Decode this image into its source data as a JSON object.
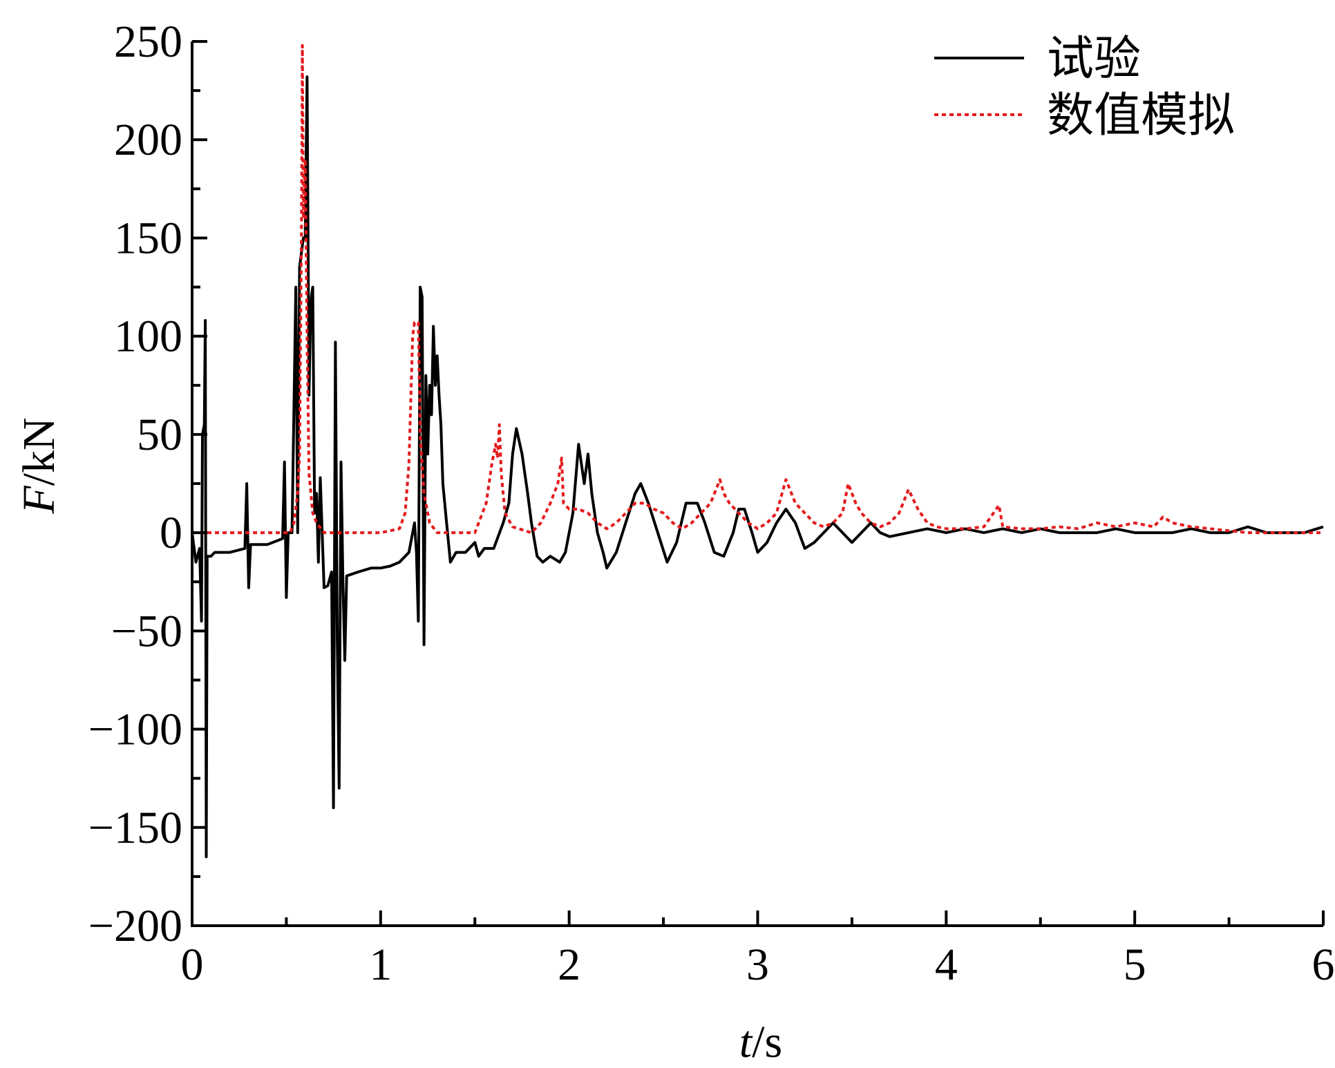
{
  "chart_data": {
    "type": "line",
    "xlabel": {
      "var": "t",
      "unit": "/s"
    },
    "ylabel": {
      "var": "F",
      "unit": "/kN"
    },
    "xlim": [
      0,
      6
    ],
    "ylim": [
      -200,
      250
    ],
    "xticks": [
      0,
      1,
      2,
      3,
      4,
      5,
      6
    ],
    "yticks": [
      -200,
      -150,
      -100,
      -50,
      0,
      50,
      100,
      150,
      200,
      250
    ],
    "xtick_labels": [
      "0",
      "1",
      "2",
      "3",
      "4",
      "5",
      "6"
    ],
    "ytick_labels": [
      "−200",
      "−150",
      "−100",
      "−50",
      "0",
      "50",
      "100",
      "150",
      "200",
      "250"
    ],
    "x_minor_step": 0.5,
    "y_minor_step": 25,
    "grid": false,
    "legend_position": "top-right",
    "series": [
      {
        "name": "试验",
        "color": "#000000",
        "dash": "solid",
        "points": [
          [
            0.0,
            0
          ],
          [
            0.02,
            -15
          ],
          [
            0.04,
            -8
          ],
          [
            0.05,
            -45
          ],
          [
            0.055,
            50
          ],
          [
            0.065,
            55
          ],
          [
            0.07,
            108
          ],
          [
            0.075,
            -165
          ],
          [
            0.08,
            -12
          ],
          [
            0.1,
            -12
          ],
          [
            0.12,
            -10
          ],
          [
            0.2,
            -10
          ],
          [
            0.28,
            -8
          ],
          [
            0.29,
            25
          ],
          [
            0.3,
            -28
          ],
          [
            0.31,
            -6
          ],
          [
            0.4,
            -6
          ],
          [
            0.48,
            -3
          ],
          [
            0.49,
            36
          ],
          [
            0.5,
            -33
          ],
          [
            0.51,
            0
          ],
          [
            0.53,
            0
          ],
          [
            0.55,
            125
          ],
          [
            0.56,
            0
          ],
          [
            0.57,
            135
          ],
          [
            0.59,
            150
          ],
          [
            0.6,
            150
          ],
          [
            0.61,
            232
          ],
          [
            0.62,
            70
          ],
          [
            0.63,
            118
          ],
          [
            0.64,
            125
          ],
          [
            0.65,
            10
          ],
          [
            0.66,
            20
          ],
          [
            0.67,
            -15
          ],
          [
            0.68,
            28
          ],
          [
            0.7,
            -28
          ],
          [
            0.72,
            -27
          ],
          [
            0.74,
            -20
          ],
          [
            0.75,
            -140
          ],
          [
            0.76,
            97
          ],
          [
            0.77,
            -55
          ],
          [
            0.78,
            -130
          ],
          [
            0.79,
            36
          ],
          [
            0.8,
            -25
          ],
          [
            0.81,
            -65
          ],
          [
            0.82,
            -22
          ],
          [
            0.88,
            -20
          ],
          [
            0.95,
            -18
          ],
          [
            1.0,
            -18
          ],
          [
            1.05,
            -17
          ],
          [
            1.1,
            -15
          ],
          [
            1.15,
            -10
          ],
          [
            1.18,
            5
          ],
          [
            1.19,
            -10
          ],
          [
            1.2,
            -45
          ],
          [
            1.21,
            125
          ],
          [
            1.22,
            120
          ],
          [
            1.23,
            -57
          ],
          [
            1.24,
            80
          ],
          [
            1.25,
            40
          ],
          [
            1.26,
            75
          ],
          [
            1.27,
            60
          ],
          [
            1.28,
            105
          ],
          [
            1.29,
            75
          ],
          [
            1.3,
            90
          ],
          [
            1.31,
            70
          ],
          [
            1.32,
            55
          ],
          [
            1.33,
            25
          ],
          [
            1.35,
            5
          ],
          [
            1.37,
            -15
          ],
          [
            1.4,
            -10
          ],
          [
            1.45,
            -10
          ],
          [
            1.5,
            -5
          ],
          [
            1.52,
            -12
          ],
          [
            1.55,
            -8
          ],
          [
            1.6,
            -8
          ],
          [
            1.65,
            5
          ],
          [
            1.68,
            15
          ],
          [
            1.7,
            40
          ],
          [
            1.72,
            53
          ],
          [
            1.75,
            40
          ],
          [
            1.78,
            20
          ],
          [
            1.8,
            5
          ],
          [
            1.83,
            -12
          ],
          [
            1.86,
            -15
          ],
          [
            1.9,
            -12
          ],
          [
            1.95,
            -15
          ],
          [
            1.98,
            -10
          ],
          [
            2.0,
            0
          ],
          [
            2.02,
            10
          ],
          [
            2.05,
            45
          ],
          [
            2.08,
            25
          ],
          [
            2.1,
            40
          ],
          [
            2.12,
            20
          ],
          [
            2.15,
            0
          ],
          [
            2.18,
            -10
          ],
          [
            2.2,
            -18
          ],
          [
            2.25,
            -10
          ],
          [
            2.3,
            5
          ],
          [
            2.35,
            20
          ],
          [
            2.38,
            25
          ],
          [
            2.42,
            15
          ],
          [
            2.47,
            0
          ],
          [
            2.52,
            -15
          ],
          [
            2.57,
            -5
          ],
          [
            2.62,
            15
          ],
          [
            2.68,
            15
          ],
          [
            2.72,
            5
          ],
          [
            2.77,
            -10
          ],
          [
            2.82,
            -12
          ],
          [
            2.87,
            0
          ],
          [
            2.9,
            12
          ],
          [
            2.93,
            12
          ],
          [
            2.97,
            0
          ],
          [
            3.0,
            -10
          ],
          [
            3.05,
            -5
          ],
          [
            3.1,
            5
          ],
          [
            3.15,
            12
          ],
          [
            3.2,
            5
          ],
          [
            3.25,
            -8
          ],
          [
            3.3,
            -5
          ],
          [
            3.35,
            0
          ],
          [
            3.4,
            5
          ],
          [
            3.45,
            0
          ],
          [
            3.5,
            -5
          ],
          [
            3.55,
            0
          ],
          [
            3.6,
            5
          ],
          [
            3.65,
            0
          ],
          [
            3.7,
            -2
          ],
          [
            3.8,
            0
          ],
          [
            3.9,
            2
          ],
          [
            4.0,
            0
          ],
          [
            4.1,
            2
          ],
          [
            4.2,
            0
          ],
          [
            4.3,
            2
          ],
          [
            4.4,
            0
          ],
          [
            4.5,
            2
          ],
          [
            4.6,
            0
          ],
          [
            4.7,
            0
          ],
          [
            4.8,
            0
          ],
          [
            4.9,
            2
          ],
          [
            5.0,
            0
          ],
          [
            5.1,
            0
          ],
          [
            5.2,
            0
          ],
          [
            5.3,
            2
          ],
          [
            5.4,
            0
          ],
          [
            5.5,
            0
          ],
          [
            5.6,
            3
          ],
          [
            5.7,
            0
          ],
          [
            5.8,
            0
          ],
          [
            5.9,
            0
          ],
          [
            6.0,
            3
          ]
        ]
      },
      {
        "name": "数值模拟",
        "color": "#e31a1c",
        "dash": "dotted",
        "points": [
          [
            0.0,
            0
          ],
          [
            0.5,
            0
          ],
          [
            0.52,
            0
          ],
          [
            0.54,
            5
          ],
          [
            0.56,
            20
          ],
          [
            0.57,
            40
          ],
          [
            0.58,
            150
          ],
          [
            0.585,
            248
          ],
          [
            0.59,
            160
          ],
          [
            0.6,
            190
          ],
          [
            0.61,
            100
          ],
          [
            0.62,
            30
          ],
          [
            0.64,
            10
          ],
          [
            0.66,
            5
          ],
          [
            0.7,
            0
          ],
          [
            1.0,
            0
          ],
          [
            1.1,
            2
          ],
          [
            1.13,
            10
          ],
          [
            1.15,
            35
          ],
          [
            1.17,
            100
          ],
          [
            1.18,
            107
          ],
          [
            1.2,
            107
          ],
          [
            1.21,
            50
          ],
          [
            1.23,
            20
          ],
          [
            1.26,
            5
          ],
          [
            1.3,
            0
          ],
          [
            1.4,
            0
          ],
          [
            1.5,
            0
          ],
          [
            1.56,
            15
          ],
          [
            1.59,
            35
          ],
          [
            1.61,
            45
          ],
          [
            1.62,
            38
          ],
          [
            1.63,
            55
          ],
          [
            1.64,
            30
          ],
          [
            1.66,
            10
          ],
          [
            1.7,
            3
          ],
          [
            1.8,
            0
          ],
          [
            1.85,
            5
          ],
          [
            1.9,
            15
          ],
          [
            1.94,
            25
          ],
          [
            1.96,
            38
          ],
          [
            1.97,
            15
          ],
          [
            2.0,
            12
          ],
          [
            2.05,
            12
          ],
          [
            2.1,
            10
          ],
          [
            2.15,
            5
          ],
          [
            2.2,
            2
          ],
          [
            2.25,
            5
          ],
          [
            2.3,
            10
          ],
          [
            2.35,
            15
          ],
          [
            2.4,
            15
          ],
          [
            2.45,
            12
          ],
          [
            2.5,
            10
          ],
          [
            2.55,
            5
          ],
          [
            2.6,
            2
          ],
          [
            2.65,
            5
          ],
          [
            2.7,
            10
          ],
          [
            2.75,
            15
          ],
          [
            2.8,
            27
          ],
          [
            2.82,
            20
          ],
          [
            2.85,
            15
          ],
          [
            2.9,
            10
          ],
          [
            2.95,
            5
          ],
          [
            3.0,
            2
          ],
          [
            3.05,
            5
          ],
          [
            3.1,
            10
          ],
          [
            3.15,
            27
          ],
          [
            3.2,
            15
          ],
          [
            3.25,
            10
          ],
          [
            3.3,
            5
          ],
          [
            3.35,
            3
          ],
          [
            3.4,
            5
          ],
          [
            3.45,
            10
          ],
          [
            3.48,
            25
          ],
          [
            3.52,
            15
          ],
          [
            3.55,
            10
          ],
          [
            3.6,
            5
          ],
          [
            3.65,
            3
          ],
          [
            3.7,
            5
          ],
          [
            3.75,
            10
          ],
          [
            3.8,
            22
          ],
          [
            3.85,
            12
          ],
          [
            3.9,
            5
          ],
          [
            3.95,
            3
          ],
          [
            4.0,
            2
          ],
          [
            4.1,
            2
          ],
          [
            4.2,
            3
          ],
          [
            4.28,
            14
          ],
          [
            4.3,
            3
          ],
          [
            4.4,
            2
          ],
          [
            4.5,
            2
          ],
          [
            4.6,
            3
          ],
          [
            4.7,
            2
          ],
          [
            4.8,
            5
          ],
          [
            4.9,
            3
          ],
          [
            5.0,
            5
          ],
          [
            5.1,
            3
          ],
          [
            5.15,
            8
          ],
          [
            5.2,
            5
          ],
          [
            5.3,
            3
          ],
          [
            5.4,
            2
          ],
          [
            5.5,
            1
          ],
          [
            5.6,
            0
          ],
          [
            5.7,
            0
          ],
          [
            5.8,
            0
          ],
          [
            5.9,
            0
          ],
          [
            6.0,
            0
          ]
        ]
      }
    ]
  }
}
